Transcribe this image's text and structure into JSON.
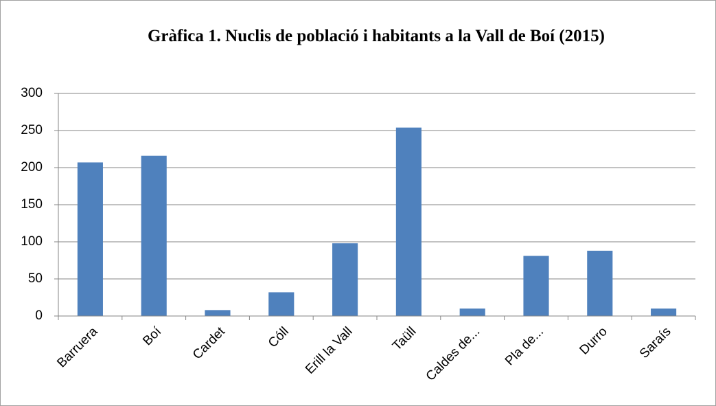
{
  "chart_data": {
    "type": "bar",
    "title": "Gràfica 1. Nuclis de població i habitants a la Vall de Boí (2015)",
    "categories": [
      "Barruera",
      "Boí",
      "Cardet",
      "Cóll",
      "Erill la Vall",
      "Taüll",
      "Caldes de...",
      "Pla de...",
      "Durro",
      "Saraís"
    ],
    "values": [
      207,
      216,
      8,
      32,
      98,
      254,
      10,
      81,
      88,
      10
    ],
    "color": "#4f81bd",
    "ylim": [
      0,
      300
    ],
    "yticks": [
      0,
      50,
      100,
      150,
      200,
      250,
      300
    ],
    "grid": true
  }
}
